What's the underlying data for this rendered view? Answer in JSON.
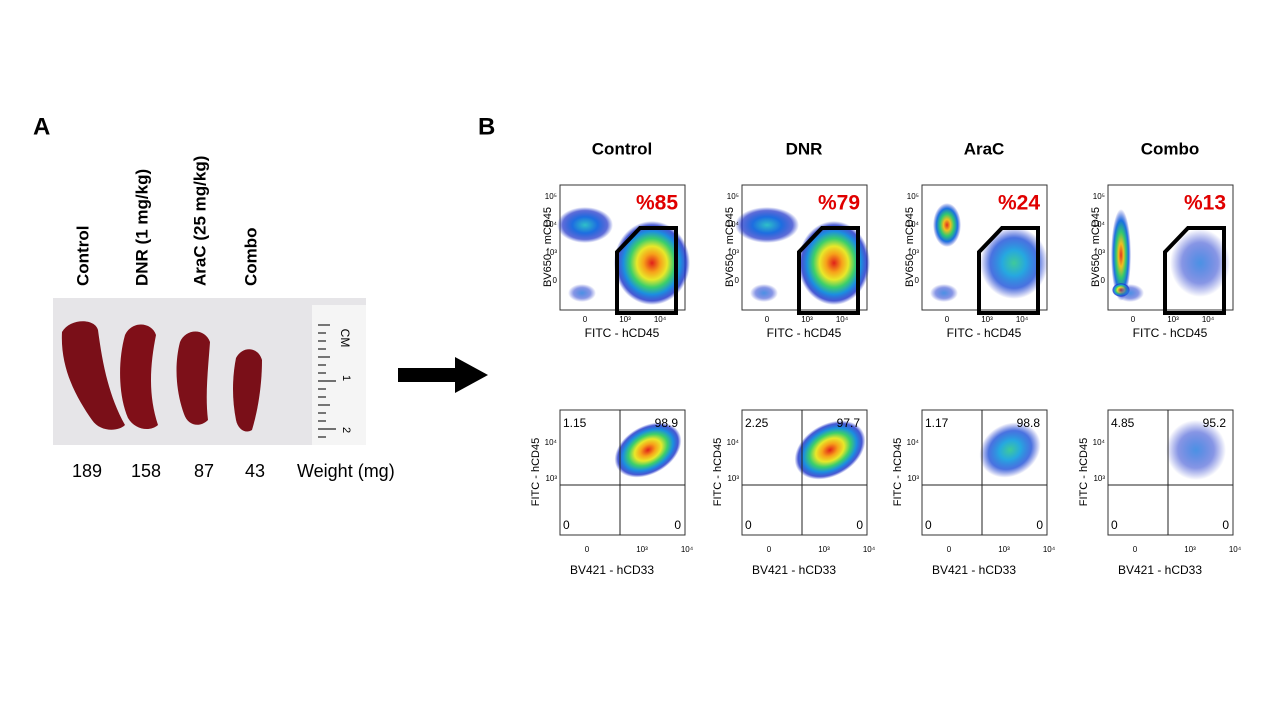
{
  "panel_a": {
    "label": "A",
    "groups": [
      "Control",
      "DNR (1 mg/kg)",
      "AraC (25 mg/kg)",
      "Combo"
    ],
    "weights": [
      189,
      158,
      87,
      43
    ],
    "weight_label": "Weight (mg)",
    "ruler_label": "CM",
    "ruler_marks": [
      "1",
      "2"
    ]
  },
  "panel_b": {
    "label": "B",
    "top_plot": {
      "y_label": "BV650 - mCD45",
      "x_label": "FITC - hCD45",
      "y_ticks": [
        "10⁵",
        "10⁴",
        "10³",
        "0"
      ],
      "x_ticks": [
        "0",
        "10³",
        "10⁴"
      ]
    },
    "bottom_plot": {
      "y_label": "FITC - hCD45",
      "x_label": "BV421 - hCD33",
      "y_ticks": [
        "10⁴",
        "10³"
      ],
      "x_ticks": [
        "0",
        "10³",
        "10⁴"
      ]
    },
    "columns": [
      {
        "title": "Control",
        "gate_percent": "%85",
        "quadrants": [
          1.15,
          98.9,
          0,
          0
        ]
      },
      {
        "title": "DNR",
        "gate_percent": "%79",
        "quadrants": [
          2.25,
          97.7,
          0,
          0
        ]
      },
      {
        "title": "AraC",
        "gate_percent": "%24",
        "quadrants": [
          1.17,
          98.8,
          0,
          0
        ]
      },
      {
        "title": "Combo",
        "gate_percent": "%13",
        "quadrants": [
          4.85,
          95.2,
          0,
          0
        ]
      }
    ]
  }
}
